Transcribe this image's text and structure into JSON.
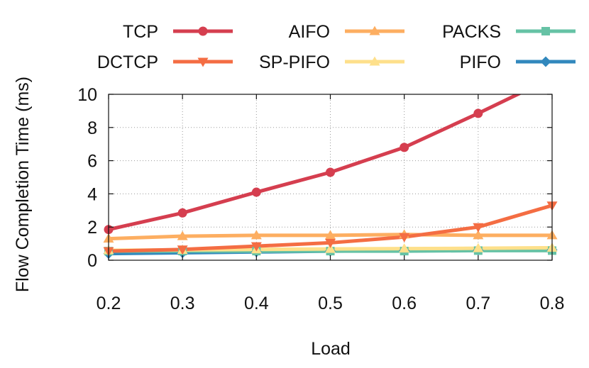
{
  "chart_data": {
    "type": "line",
    "title": "",
    "xlabel": "Load",
    "ylabel": "Flow Completion Time (ms)",
    "x": [
      0.2,
      0.3,
      0.4,
      0.5,
      0.6,
      0.7,
      0.8
    ],
    "xticks": [
      "0.2",
      "0.3",
      "0.4",
      "0.5",
      "0.6",
      "0.7",
      "0.8"
    ],
    "yticks": [
      "0",
      "2",
      "4",
      "6",
      "8",
      "10"
    ],
    "xlim": [
      0.2,
      0.8
    ],
    "ylim": [
      0,
      10
    ],
    "grid": true,
    "legend_position": "top",
    "series": [
      {
        "name": "TCP",
        "color": "#d53e4f",
        "marker": "circle",
        "values": [
          1.85,
          2.85,
          4.1,
          5.3,
          6.8,
          8.85,
          11.0
        ]
      },
      {
        "name": "DCTCP",
        "color": "#f46d43",
        "marker": "triangle-down",
        "values": [
          0.55,
          0.65,
          0.85,
          1.05,
          1.4,
          2.0,
          3.3
        ]
      },
      {
        "name": "AIFO",
        "color": "#fdae61",
        "marker": "triangle-up",
        "values": [
          1.3,
          1.45,
          1.5,
          1.5,
          1.55,
          1.5,
          1.5
        ]
      },
      {
        "name": "SP-PIFO",
        "color": "#fee08b",
        "marker": "triangle-up",
        "values": [
          0.6,
          0.62,
          0.65,
          0.68,
          0.7,
          0.72,
          0.75
        ]
      },
      {
        "name": "PACKS",
        "color": "#66c2a5",
        "marker": "square",
        "values": [
          0.55,
          0.55,
          0.55,
          0.55,
          0.55,
          0.58,
          0.58
        ]
      },
      {
        "name": "PIFO",
        "color": "#3288bd",
        "marker": "diamond",
        "values": [
          0.4,
          0.45,
          0.5,
          0.55,
          0.58,
          0.6,
          0.62
        ]
      }
    ]
  }
}
